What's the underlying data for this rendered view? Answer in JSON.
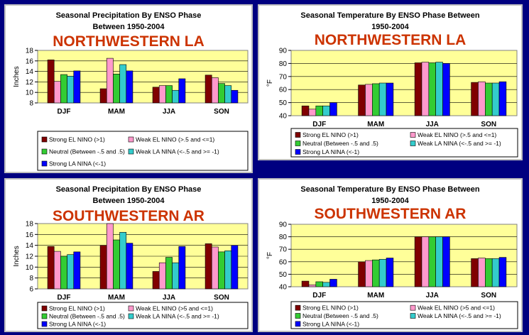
{
  "colors": {
    "background": "#000080",
    "plot_bg": "#ffff99",
    "region_red": "#cc3300",
    "series": [
      "#800000",
      "#ff99cc",
      "#33cc33",
      "#33cccc",
      "#0000ff"
    ]
  },
  "chart_data": [
    {
      "type": "bar",
      "title": "Seasonal Precipitation By ENSO Phase",
      "subtitle": "Between 1950-2004",
      "region": "NORTHWESTERN  LA",
      "ylabel": "Inches",
      "ylim": [
        8,
        18
      ],
      "yticks": [
        "8",
        "10",
        "12",
        "14",
        "16",
        "18"
      ],
      "categories": [
        "DJF",
        "MAM",
        "JJA",
        "SON"
      ],
      "legend": [
        "Strong EL NINO (>1)",
        "Weak EL NINO (>.5 and <=1)",
        "Neutral (Between -.5 and .5)",
        "Weak LA NINA (<-.5 and >= -1)",
        "Strong LA NINA (<-1)"
      ],
      "series": [
        {
          "name": "Strong EL NINO (>1)",
          "values": [
            16.2,
            10.7,
            11.0,
            13.3
          ]
        },
        {
          "name": "Weak EL NINO (>.5 and <=1)",
          "values": [
            12.1,
            16.5,
            11.3,
            12.8
          ]
        },
        {
          "name": "Neutral (Between -.5 and .5)",
          "values": [
            13.4,
            13.5,
            11.3,
            11.7
          ]
        },
        {
          "name": "Weak LA NINA (<-.5 and >= -1)",
          "values": [
            13.1,
            15.3,
            10.4,
            11.3
          ]
        },
        {
          "name": "Strong LA NINA (<-1)",
          "values": [
            14.1,
            14.1,
            12.6,
            10.4
          ]
        }
      ]
    },
    {
      "type": "bar",
      "title": "Seasonal Temperature By ENSO Phase Between",
      "subtitle": "1950-2004",
      "region": "NORTHWESTERN  LA",
      "ylabel": "°F",
      "ylim": [
        40,
        90
      ],
      "yticks": [
        "40",
        "50",
        "60",
        "70",
        "80",
        "90"
      ],
      "categories": [
        "DJF",
        "MAM",
        "JJA",
        "SON"
      ],
      "legend": [
        "Strong EL NINO (>1)",
        "Weak EL NINO (>.5 and <=1)",
        "Neutral (Between -.5 and .5)",
        "Weak LA NINA (<-.5 and >= -1)",
        "Strong LA NINA (<-1)"
      ],
      "series": [
        {
          "name": "Strong EL NINO (>1)",
          "values": [
            47.5,
            63.5,
            80.5,
            65.5
          ]
        },
        {
          "name": "Weak EL NINO (>.5 and <=1)",
          "values": [
            45.0,
            64.0,
            81.0,
            66.0
          ]
        },
        {
          "name": "Neutral (Between -.5 and .5)",
          "values": [
            47.5,
            64.5,
            80.5,
            65.0
          ]
        },
        {
          "name": "Weak LA NINA (<-.5 and >= -1)",
          "values": [
            47.5,
            65.0,
            81.0,
            65.0
          ]
        },
        {
          "name": "Strong LA NINA (<-1)",
          "values": [
            50.0,
            65.0,
            80.0,
            66.0
          ]
        }
      ]
    },
    {
      "type": "bar",
      "title": "Seasonal Precipitation By ENSO Phase",
      "subtitle": "Between 1950-2004",
      "region": "SOUTHWESTERN AR",
      "ylabel": "Inches",
      "ylim": [
        6,
        18
      ],
      "yticks": [
        "6",
        "8",
        "10",
        "12",
        "14",
        "16",
        "18"
      ],
      "categories": [
        "DJF",
        "MAM",
        "JJA",
        "SON"
      ],
      "legend": [
        "Strong EL NINO (>1)",
        "Weak EL NINO (>5 and <=1)",
        "Neutral (Between -.5 and .5)",
        "Weak LA NINA (<-.5 and >= -1)",
        "Strong LA NINA (<-1)"
      ],
      "series": [
        {
          "name": "Strong EL NINO (>1)",
          "values": [
            13.8,
            14.0,
            9.2,
            14.3
          ]
        },
        {
          "name": "Weak EL NINO (>5 and <=1)",
          "values": [
            12.9,
            18.5,
            10.8,
            13.7
          ]
        },
        {
          "name": "Neutral (Between -.5 and .5)",
          "values": [
            12.0,
            15.0,
            11.8,
            12.8
          ]
        },
        {
          "name": "Weak LA NINA (<-.5 and >= -1)",
          "values": [
            12.3,
            16.4,
            10.8,
            13.0
          ]
        },
        {
          "name": "Strong LA NINA (<-1)",
          "values": [
            12.8,
            14.4,
            13.8,
            14.0
          ]
        }
      ]
    },
    {
      "type": "bar",
      "title": "Seasonal Temperature By ENSO Phase Between",
      "subtitle": "1950-2004",
      "region": "SOUTHWESTERN AR",
      "ylabel": "°F",
      "ylim": [
        40,
        90
      ],
      "yticks": [
        "40",
        "50",
        "60",
        "70",
        "80",
        "90"
      ],
      "categories": [
        "DJF",
        "MAM",
        "JJA",
        "SON"
      ],
      "legend": [
        "Strong EL NINO (>1)",
        "Weak EL NINO (>5 and <=1)",
        "Neutral (Between -.5 and .5)",
        "Weak LA NINA (<-.5 and >= -1)",
        "Strong LA NINA (<-1)"
      ],
      "series": [
        {
          "name": "Strong EL NINO (>1)",
          "values": [
            44.5,
            60.0,
            80.0,
            62.5
          ]
        },
        {
          "name": "Weak EL NINO (>5 and <=1)",
          "values": [
            41.5,
            61.0,
            80.0,
            63.0
          ]
        },
        {
          "name": "Neutral (Between -.5 and .5)",
          "values": [
            44.0,
            61.5,
            80.0,
            62.5
          ]
        },
        {
          "name": "Weak LA NINA (<-.5 and >= -1)",
          "values": [
            43.5,
            62.0,
            80.0,
            62.5
          ]
        },
        {
          "name": "Strong LA NINA (<-1)",
          "values": [
            46.0,
            63.0,
            80.0,
            63.5
          ]
        }
      ]
    }
  ]
}
